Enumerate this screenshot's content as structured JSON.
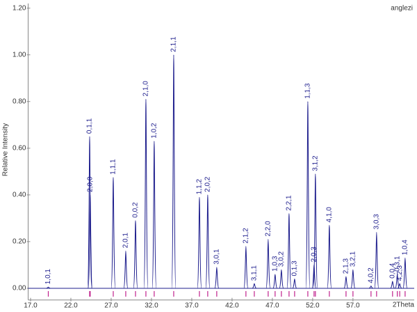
{
  "chart_data": {
    "type": "diffraction",
    "title": "anglezi",
    "y_label": "Relative Intensity",
    "x_label": "2Theta",
    "color": "#1c1c8c",
    "marker_color": "#c0208c",
    "xlim": [
      16.7,
      64.6
    ],
    "ylim": [
      -0.05,
      1.22
    ],
    "xticks": [
      {
        "value": 17,
        "label": "17.0"
      },
      {
        "value": 22,
        "label": "22.0"
      },
      {
        "value": 27,
        "label": "27.0"
      },
      {
        "value": 32,
        "label": "32.0"
      },
      {
        "value": 37,
        "label": "37.0"
      },
      {
        "value": 42,
        "label": "42.0"
      },
      {
        "value": 47,
        "label": "47.0"
      },
      {
        "value": 52,
        "label": "52.0"
      },
      {
        "value": 57,
        "label": "57.0"
      }
    ],
    "yticks": [
      {
        "value": 0,
        "label": "0.00"
      },
      {
        "value": 0.2,
        "label": "0.20"
      },
      {
        "value": 0.4,
        "label": "0.40"
      },
      {
        "value": 0.6,
        "label": "0.60"
      },
      {
        "value": 0.8,
        "label": "0.80"
      },
      {
        "value": 1.0,
        "label": "1.00"
      },
      {
        "value": 1.2,
        "label": "1.20"
      }
    ],
    "labels": [
      "1,0,1",
      "0,1,1",
      "2,0,0",
      "1,1,1",
      "2,0,1",
      "0,0,2",
      "2,1,0",
      "1,0,2",
      "2,1,1",
      "1,1,2",
      "2,0,2",
      "3,0,1",
      "2,1,2",
      "3,1,1",
      "2,2,0",
      "1,0,3",
      "3,0,2",
      "2,2,1",
      "0,1,3",
      "1,1,3",
      "2,0,3",
      "3,1,2",
      "4,1,0",
      "2,1,3",
      "3,2,1",
      "4,0,2",
      "3,0,3",
      "0,0,4",
      "0,3,1",
      "4,2,3",
      "1,0,4"
    ],
    "x": [
      19.2,
      24.33,
      24.4,
      27.26,
      28.81,
      30.02,
      31.31,
      32.34,
      34.76,
      37.95,
      38.98,
      40.1,
      43.72,
      44.76,
      46.48,
      47.34,
      48.12,
      49.07,
      49.76,
      51.4,
      52.17,
      52.34,
      54.07,
      56.14,
      57.0,
      59.24,
      59.93,
      61.91,
      62.5,
      62.8,
      63.47
    ],
    "values": [
      0.005,
      0.65,
      0.4,
      0.475,
      0.16,
      0.29,
      0.81,
      0.63,
      1.0,
      0.39,
      0.4,
      0.09,
      0.18,
      0.02,
      0.21,
      0.06,
      0.08,
      0.32,
      0.04,
      0.8,
      0.1,
      0.49,
      0.27,
      0.05,
      0.08,
      0.01,
      0.24,
      0.03,
      0.06,
      0.02,
      0.13
    ]
  }
}
